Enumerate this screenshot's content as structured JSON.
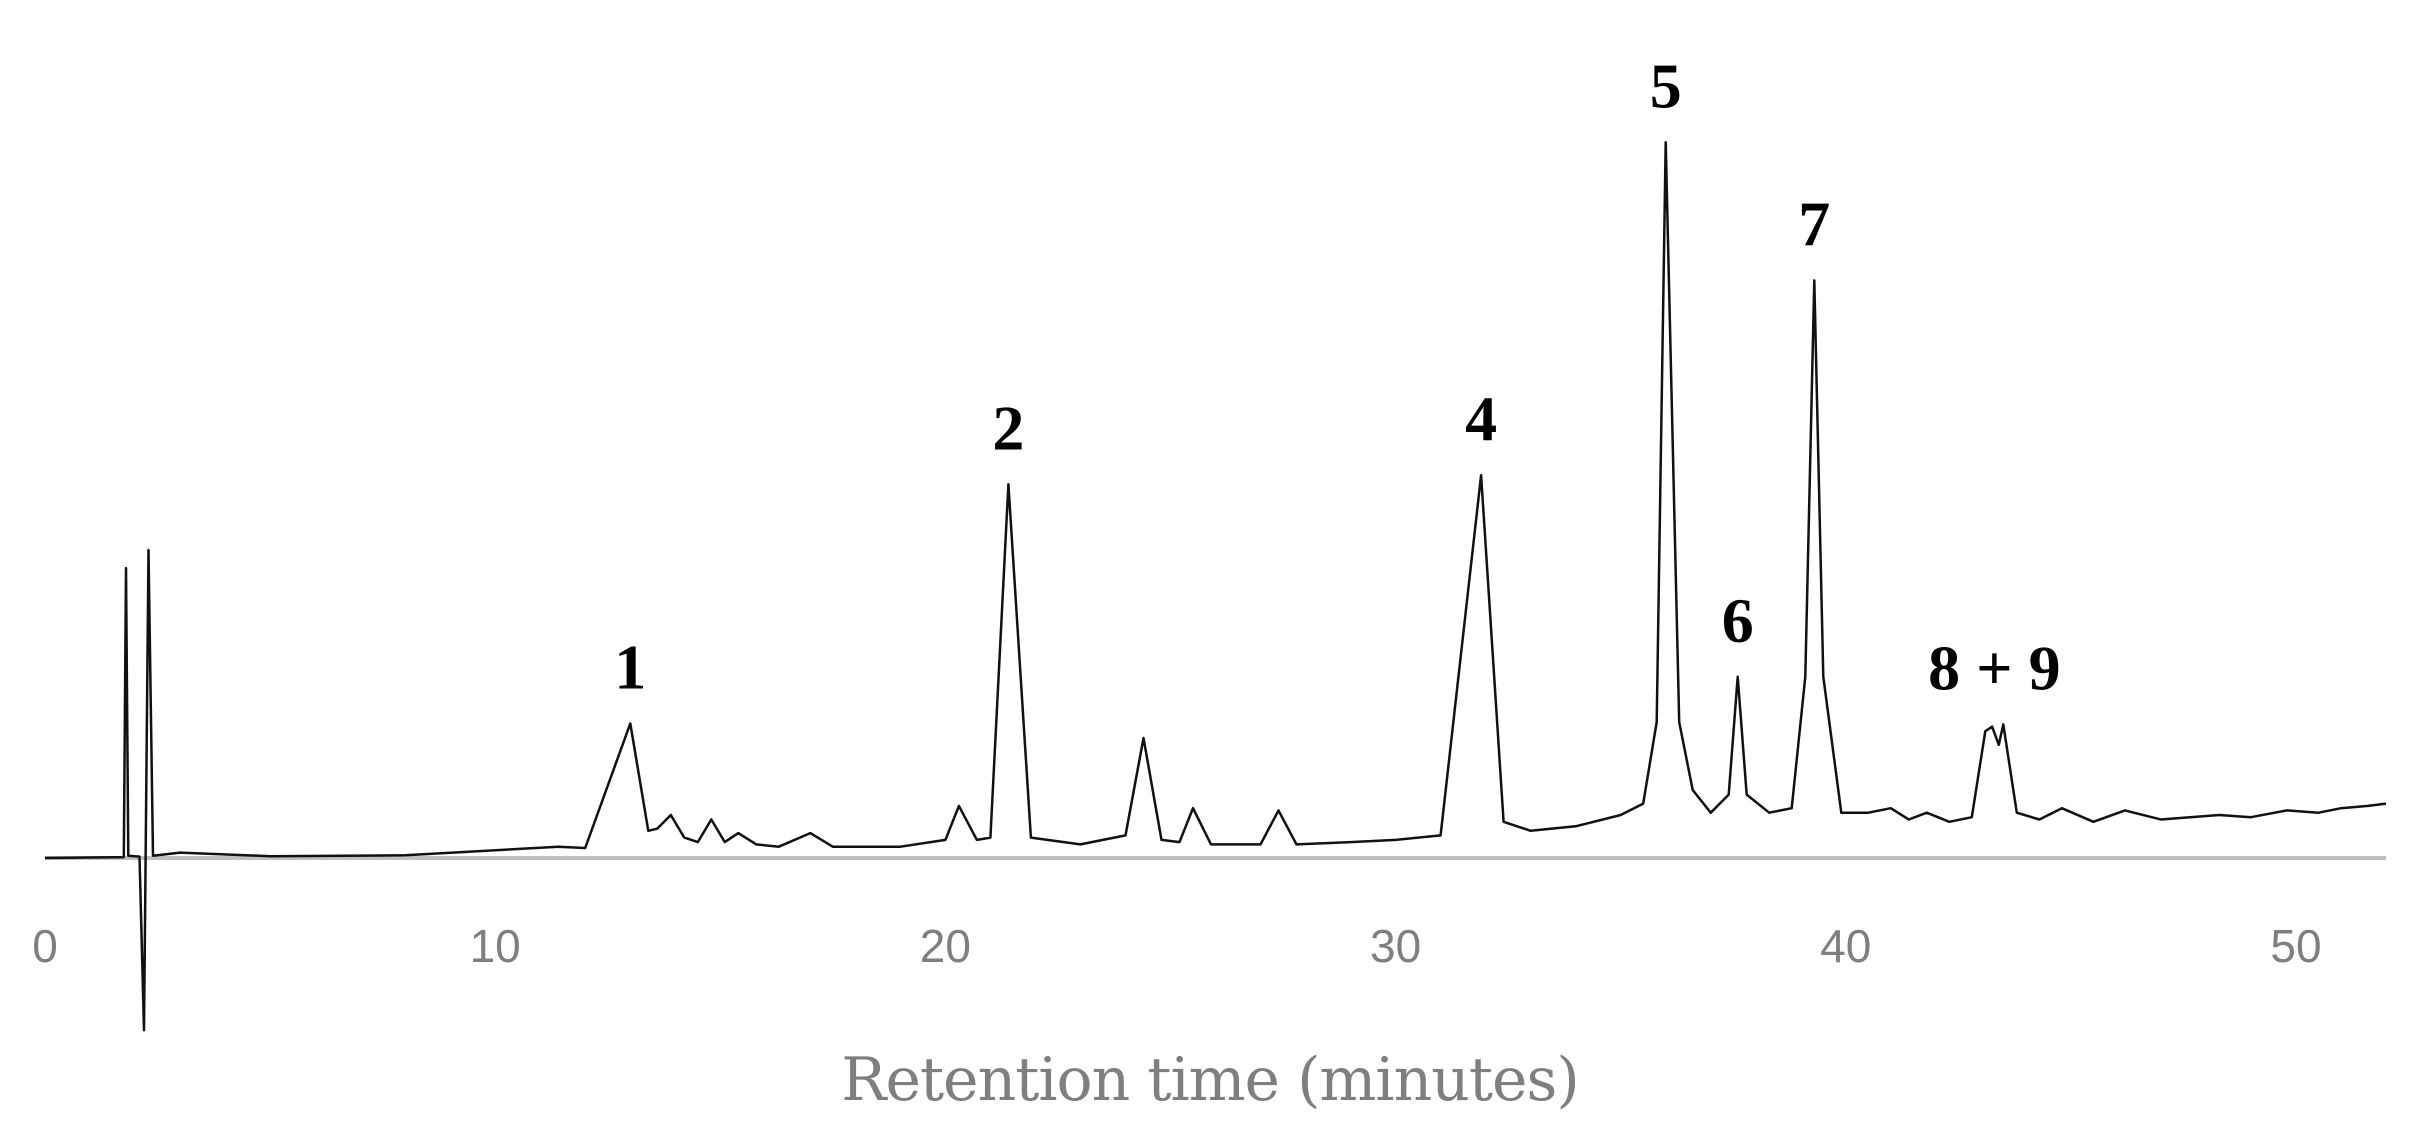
{
  "chart_data": {
    "type": "line",
    "title": "",
    "xlabel": "Retention time (minutes)",
    "ylabel": "",
    "xlim": [
      0,
      52
    ],
    "ylim": [
      -38,
      157
    ],
    "xticks": [
      0,
      10,
      20,
      30,
      40,
      50
    ],
    "xtick_labels": [
      "0",
      "10",
      "20",
      "30",
      "40",
      "50"
    ],
    "grid": false,
    "legend": "none",
    "colors": {
      "trace": "#111111",
      "baseline": "#bfbfbf",
      "tick_text": "#7f7f7f",
      "label_text": "#000000"
    },
    "series": [
      {
        "values": [
          [
            0,
            0
          ],
          [
            1.75,
            0.2
          ],
          [
            1.8,
            64
          ],
          [
            1.85,
            0.5
          ],
          [
            2.1,
            0.3
          ],
          [
            2.2,
            -38
          ],
          [
            2.3,
            68
          ],
          [
            2.4,
            0.5
          ],
          [
            3,
            1.2
          ],
          [
            5,
            0.4
          ],
          [
            8,
            0.6
          ],
          [
            11.4,
            2.5
          ],
          [
            12,
            2.2
          ],
          [
            13,
            29.7
          ],
          [
            13.4,
            6
          ],
          [
            13.6,
            6.5
          ],
          [
            13.9,
            9.5
          ],
          [
            14.2,
            4.5
          ],
          [
            14.5,
            3.5
          ],
          [
            14.8,
            8.5
          ],
          [
            15.1,
            3.5
          ],
          [
            15.4,
            5.5
          ],
          [
            15.8,
            3
          ],
          [
            16.3,
            2.5
          ],
          [
            17,
            5.5
          ],
          [
            17.5,
            2.5
          ],
          [
            19,
            2.5
          ],
          [
            20,
            4
          ],
          [
            20.3,
            11.5
          ],
          [
            20.7,
            4
          ],
          [
            21,
            4.5
          ],
          [
            21.4,
            82.5
          ],
          [
            21.9,
            4.5
          ],
          [
            23,
            3
          ],
          [
            24,
            5
          ],
          [
            24.4,
            26.5
          ],
          [
            24.8,
            4
          ],
          [
            25.2,
            3.5
          ],
          [
            25.5,
            11
          ],
          [
            25.9,
            3
          ],
          [
            27,
            3
          ],
          [
            27.4,
            10.5
          ],
          [
            27.8,
            3
          ],
          [
            29,
            3.5
          ],
          [
            30,
            4
          ],
          [
            31,
            5
          ],
          [
            31.9,
            84.5
          ],
          [
            32.4,
            8
          ],
          [
            33,
            6
          ],
          [
            34,
            7
          ],
          [
            35,
            9.5
          ],
          [
            35.5,
            12
          ],
          [
            35.8,
            30
          ],
          [
            36,
            158
          ],
          [
            36.3,
            30
          ],
          [
            36.6,
            15
          ],
          [
            37,
            10
          ],
          [
            37.4,
            14
          ],
          [
            37.6,
            40
          ],
          [
            37.8,
            14
          ],
          [
            38.3,
            10
          ],
          [
            38.8,
            11
          ],
          [
            39.1,
            40
          ],
          [
            39.3,
            127.5
          ],
          [
            39.5,
            40
          ],
          [
            39.9,
            10
          ],
          [
            40.5,
            10
          ],
          [
            41,
            11
          ],
          [
            41.4,
            8.5
          ],
          [
            41.8,
            10
          ],
          [
            42.3,
            8
          ],
          [
            42.8,
            9
          ],
          [
            43.1,
            28
          ],
          [
            43.25,
            29
          ],
          [
            43.4,
            25
          ],
          [
            43.5,
            29.5
          ],
          [
            43.8,
            10
          ],
          [
            44.3,
            8.5
          ],
          [
            44.8,
            11
          ],
          [
            45.5,
            8
          ],
          [
            46.2,
            10.5
          ],
          [
            47,
            8.5
          ],
          [
            48.3,
            9.5
          ],
          [
            49,
            9
          ],
          [
            49.8,
            10.5
          ],
          [
            50.5,
            10
          ],
          [
            51,
            11
          ],
          [
            51.6,
            11.5
          ],
          [
            52,
            12
          ]
        ]
      }
    ],
    "annotations": [
      {
        "text": "1",
        "x": 13.0,
        "y": 29.7
      },
      {
        "text": "2",
        "x": 21.4,
        "y": 82.5
      },
      {
        "text": "4",
        "x": 31.9,
        "y": 84.5
      },
      {
        "text": "5",
        "x": 36.0,
        "y": 158
      },
      {
        "text": "6",
        "x": 37.6,
        "y": 40
      },
      {
        "text": "7",
        "x": 39.3,
        "y": 127.5
      },
      {
        "text": "8 + 9",
        "x": 43.3,
        "y": 29.5
      }
    ]
  }
}
